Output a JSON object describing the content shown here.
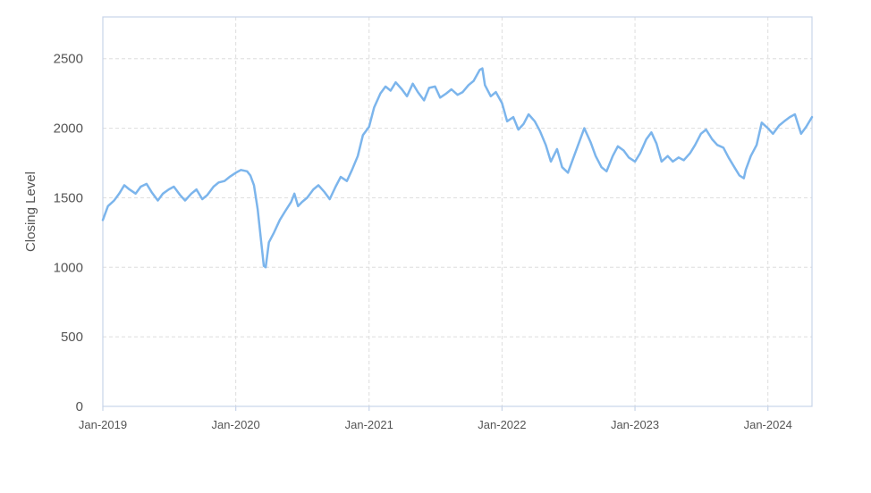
{
  "chart_data": {
    "type": "line",
    "title": "",
    "xlabel": "",
    "ylabel": "Closing Level",
    "ylim": [
      0,
      2800
    ],
    "xlim": [
      "2019-01-01",
      "2024-05-01"
    ],
    "yticks": [
      0,
      500,
      1000,
      1500,
      2000,
      2500
    ],
    "xticks": [
      {
        "date": "2019-01-01",
        "label": "Jan-2019"
      },
      {
        "date": "2020-01-01",
        "label": "Jan-2020"
      },
      {
        "date": "2021-01-01",
        "label": "Jan-2021"
      },
      {
        "date": "2022-01-01",
        "label": "Jan-2022"
      },
      {
        "date": "2023-01-01",
        "label": "Jan-2023"
      },
      {
        "date": "2024-01-01",
        "label": "Jan-2024"
      }
    ],
    "grid": true,
    "legend": "none",
    "line_color": "#7cb5ec",
    "series": [
      {
        "x": [
          "2019-01-01",
          "2019-01-15",
          "2019-02-01",
          "2019-02-15",
          "2019-03-01",
          "2019-03-15",
          "2019-04-01",
          "2019-04-15",
          "2019-05-01",
          "2019-05-15",
          "2019-06-01",
          "2019-06-15",
          "2019-07-01",
          "2019-07-15",
          "2019-08-01",
          "2019-08-15",
          "2019-09-01",
          "2019-09-15",
          "2019-10-01",
          "2019-10-15",
          "2019-11-01",
          "2019-11-15",
          "2019-12-01",
          "2019-12-15",
          "2020-01-01",
          "2020-01-15",
          "2020-02-01",
          "2020-02-10",
          "2020-02-20",
          "2020-03-01",
          "2020-03-10",
          "2020-03-18",
          "2020-03-23",
          "2020-04-01",
          "2020-04-15",
          "2020-05-01",
          "2020-05-15",
          "2020-06-01",
          "2020-06-10",
          "2020-06-20",
          "2020-07-01",
          "2020-07-15",
          "2020-08-01",
          "2020-08-15",
          "2020-09-01",
          "2020-09-15",
          "2020-10-01",
          "2020-10-15",
          "2020-11-01",
          "2020-11-15",
          "2020-12-01",
          "2020-12-15",
          "2021-01-01",
          "2021-01-15",
          "2021-02-01",
          "2021-02-15",
          "2021-03-01",
          "2021-03-15",
          "2021-04-01",
          "2021-04-15",
          "2021-05-01",
          "2021-05-15",
          "2021-06-01",
          "2021-06-15",
          "2021-07-01",
          "2021-07-15",
          "2021-08-01",
          "2021-08-15",
          "2021-09-01",
          "2021-09-15",
          "2021-10-01",
          "2021-10-15",
          "2021-11-01",
          "2021-11-08",
          "2021-11-15",
          "2021-12-01",
          "2021-12-15",
          "2022-01-01",
          "2022-01-15",
          "2022-02-01",
          "2022-02-15",
          "2022-03-01",
          "2022-03-15",
          "2022-04-01",
          "2022-04-15",
          "2022-05-01",
          "2022-05-15",
          "2022-06-01",
          "2022-06-15",
          "2022-07-01",
          "2022-07-15",
          "2022-08-01",
          "2022-08-15",
          "2022-09-01",
          "2022-09-15",
          "2022-10-01",
          "2022-10-15",
          "2022-11-01",
          "2022-11-15",
          "2022-12-01",
          "2022-12-15",
          "2023-01-01",
          "2023-01-15",
          "2023-02-01",
          "2023-02-15",
          "2023-03-01",
          "2023-03-15",
          "2023-04-01",
          "2023-04-15",
          "2023-05-01",
          "2023-05-15",
          "2023-06-01",
          "2023-06-15",
          "2023-07-01",
          "2023-07-15",
          "2023-08-01",
          "2023-08-15",
          "2023-09-01",
          "2023-09-15",
          "2023-10-01",
          "2023-10-15",
          "2023-10-27",
          "2023-11-01",
          "2023-11-15",
          "2023-12-01",
          "2023-12-15",
          "2024-01-01",
          "2024-01-15",
          "2024-02-01",
          "2024-02-15",
          "2024-03-01",
          "2024-03-15",
          "2024-04-01",
          "2024-04-15",
          "2024-05-01"
        ],
        "values": [
          1340,
          1440,
          1480,
          1530,
          1590,
          1560,
          1530,
          1580,
          1600,
          1540,
          1480,
          1530,
          1560,
          1580,
          1520,
          1480,
          1530,
          1560,
          1490,
          1520,
          1580,
          1610,
          1620,
          1650,
          1680,
          1700,
          1690,
          1660,
          1590,
          1420,
          1200,
          1010,
          1000,
          1180,
          1250,
          1340,
          1400,
          1470,
          1530,
          1440,
          1470,
          1500,
          1560,
          1590,
          1540,
          1490,
          1580,
          1650,
          1620,
          1700,
          1800,
          1950,
          2010,
          2150,
          2250,
          2300,
          2270,
          2330,
          2280,
          2230,
          2320,
          2260,
          2200,
          2290,
          2300,
          2220,
          2250,
          2280,
          2240,
          2260,
          2310,
          2340,
          2420,
          2430,
          2310,
          2230,
          2260,
          2180,
          2050,
          2080,
          1990,
          2030,
          2100,
          2050,
          1980,
          1880,
          1760,
          1850,
          1720,
          1680,
          1780,
          1900,
          2000,
          1900,
          1800,
          1720,
          1690,
          1800,
          1870,
          1840,
          1790,
          1760,
          1820,
          1920,
          1970,
          1890,
          1760,
          1800,
          1760,
          1790,
          1770,
          1820,
          1880,
          1960,
          1990,
          1920,
          1880,
          1860,
          1790,
          1720,
          1660,
          1640,
          1700,
          1800,
          1880,
          2040,
          2000,
          1960,
          2020,
          2050,
          2080,
          2100,
          1960,
          2010,
          2080
        ]
      }
    ]
  }
}
